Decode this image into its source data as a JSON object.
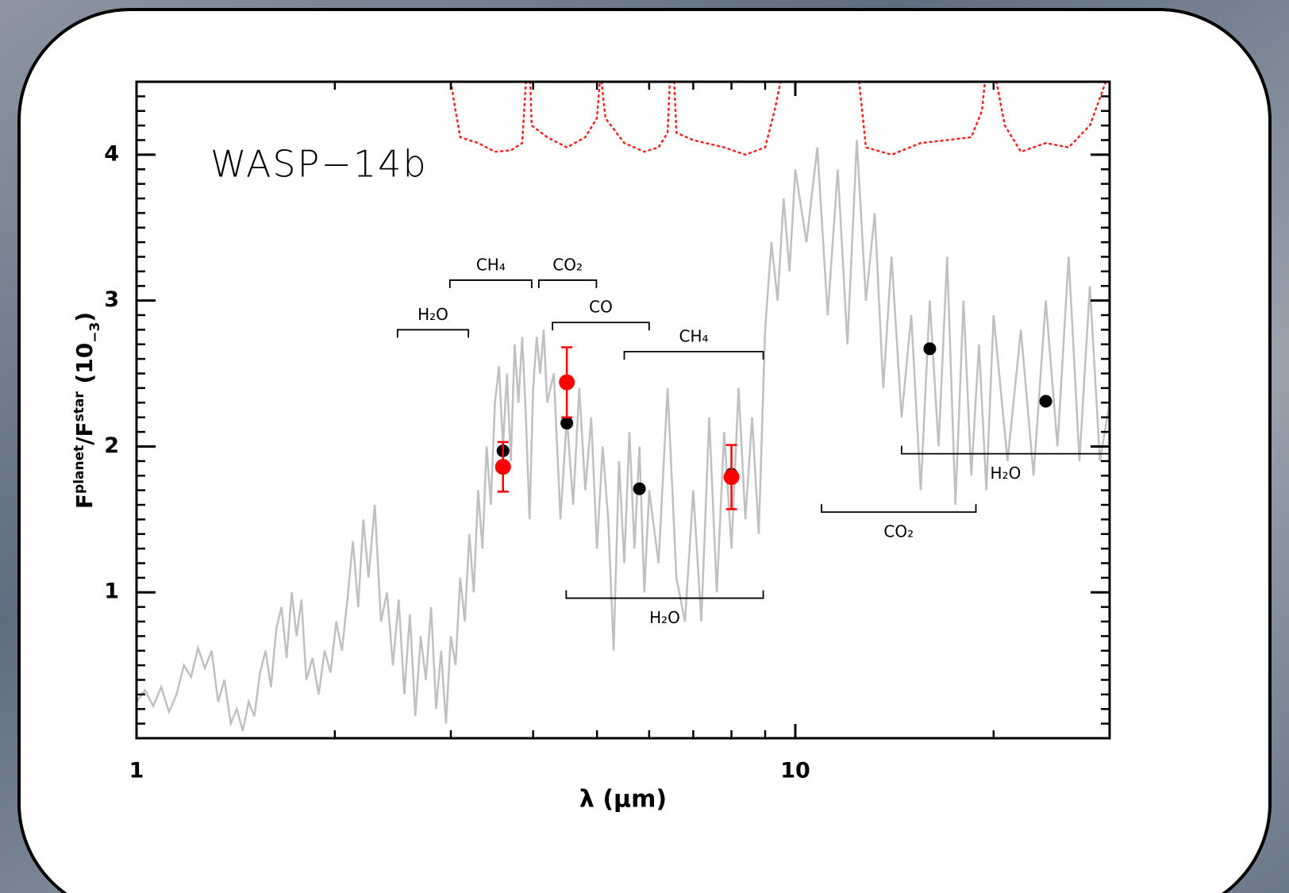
{
  "chart_data": {
    "type": "line",
    "title": "WASP−14b",
    "xlabel": "λ (μm)",
    "ylabel_parts": [
      "F",
      "planet",
      "/F",
      "star",
      " (10",
      "−3",
      ")"
    ],
    "xscale": "log",
    "xlim": [
      1,
      30
    ],
    "ylim": [
      0,
      4.5
    ],
    "xticks": [
      1,
      10
    ],
    "xminorticks": [
      2,
      3,
      4,
      5,
      6,
      7,
      8,
      9,
      20,
      30
    ],
    "yticks": [
      1,
      2,
      3,
      4
    ],
    "yminorticks": [
      0.1,
      0.2,
      0.3,
      0.4,
      0.5,
      0.6,
      0.7,
      0.8,
      0.9,
      1.1,
      1.2,
      1.3,
      1.4,
      1.5,
      1.6,
      1.7,
      1.8,
      1.9,
      2.1,
      2.2,
      2.3,
      2.4,
      2.5,
      2.6,
      2.7,
      2.8,
      2.9,
      3.1,
      3.2,
      3.3,
      3.4,
      3.5,
      3.6,
      3.7,
      3.8,
      3.9,
      4.1,
      4.2,
      4.3,
      4.4
    ],
    "series": [
      {
        "type": "line",
        "color": "#c0c0c0",
        "x": [
          1.0,
          1.03,
          1.06,
          1.09,
          1.12,
          1.15,
          1.18,
          1.21,
          1.24,
          1.27,
          1.3,
          1.33,
          1.36,
          1.39,
          1.42,
          1.45,
          1.48,
          1.51,
          1.54,
          1.57,
          1.6,
          1.63,
          1.66,
          1.69,
          1.72,
          1.75,
          1.78,
          1.81,
          1.85,
          1.89,
          1.93,
          1.97,
          2.01,
          2.05,
          2.09,
          2.13,
          2.17,
          2.21,
          2.25,
          2.3,
          2.35,
          2.4,
          2.45,
          2.5,
          2.55,
          2.6,
          2.65,
          2.7,
          2.75,
          2.8,
          2.85,
          2.9,
          2.95,
          3.0,
          3.05,
          3.1,
          3.15,
          3.2,
          3.25,
          3.3,
          3.35,
          3.4,
          3.45,
          3.5,
          3.55,
          3.6,
          3.65,
          3.7,
          3.75,
          3.8,
          3.85,
          3.9,
          3.95,
          4.0,
          4.05,
          4.1,
          4.15,
          4.2,
          4.3,
          4.4,
          4.5,
          4.6,
          4.7,
          4.8,
          4.9,
          5.0,
          5.1,
          5.2,
          5.3,
          5.4,
          5.5,
          5.6,
          5.7,
          5.8,
          5.9,
          6.0,
          6.2,
          6.4,
          6.6,
          6.8,
          7.0,
          7.2,
          7.4,
          7.6,
          7.8,
          8.0,
          8.2,
          8.4,
          8.6,
          8.8,
          9.0,
          9.2,
          9.4,
          9.6,
          9.8,
          10.0,
          10.4,
          10.8,
          11.2,
          11.6,
          12.0,
          12.4,
          12.8,
          13.2,
          13.6,
          14.0,
          14.5,
          15.0,
          15.5,
          16.0,
          16.5,
          17.0,
          17.5,
          18.0,
          18.5,
          19.0,
          19.5,
          20.0,
          21,
          22,
          23,
          24,
          25,
          26,
          27,
          28,
          29,
          30
        ],
        "values": [
          0.25,
          0.33,
          0.22,
          0.35,
          0.18,
          0.3,
          0.5,
          0.42,
          0.62,
          0.48,
          0.6,
          0.25,
          0.4,
          0.1,
          0.2,
          0.05,
          0.25,
          0.15,
          0.45,
          0.6,
          0.35,
          0.75,
          0.9,
          0.55,
          1.0,
          0.7,
          0.95,
          0.4,
          0.55,
          0.3,
          0.6,
          0.45,
          0.8,
          0.6,
          0.95,
          1.35,
          0.9,
          1.5,
          1.1,
          1.6,
          0.8,
          1.0,
          0.5,
          0.95,
          0.3,
          0.85,
          0.15,
          0.7,
          0.4,
          0.9,
          0.2,
          0.6,
          0.1,
          0.7,
          0.5,
          1.1,
          0.8,
          1.4,
          1.0,
          1.7,
          1.3,
          2.0,
          1.6,
          2.3,
          2.55,
          2.0,
          2.5,
          1.9,
          2.7,
          2.3,
          2.75,
          2.2,
          1.5,
          2.4,
          2.75,
          2.5,
          2.8,
          2.3,
          2.5,
          1.5,
          2.2,
          1.6,
          2.4,
          1.7,
          2.2,
          1.3,
          2.0,
          1.5,
          0.6,
          1.9,
          1.2,
          2.1,
          1.3,
          2.0,
          1.0,
          1.7,
          1.2,
          2.4,
          1.1,
          0.8,
          1.7,
          0.8,
          2.2,
          1.0,
          2.1,
          1.3,
          2.4,
          1.5,
          2.2,
          1.4,
          2.8,
          3.4,
          3.0,
          3.7,
          3.2,
          3.9,
          3.4,
          4.05,
          2.9,
          3.9,
          2.7,
          4.1,
          3.0,
          3.6,
          2.4,
          3.3,
          2.2,
          2.9,
          1.7,
          3.0,
          2.0,
          3.3,
          1.6,
          3.0,
          1.8,
          2.7,
          1.7,
          2.9,
          1.9,
          2.8,
          1.8,
          3.0,
          2.0,
          3.3,
          1.9,
          3.1,
          1.9,
          2.3
        ]
      },
      {
        "type": "line",
        "color": "#ff2020",
        "style": "dotted",
        "x": [
          3.0,
          3.05,
          3.1,
          3.3,
          3.5,
          3.7,
          3.85,
          3.9,
          3.93,
          3.96,
          3.98,
          4.2,
          4.5,
          4.8,
          5.0,
          5.05,
          5.06,
          5.08,
          5.15,
          5.5,
          5.9,
          6.2,
          6.4,
          6.45,
          6.5,
          6.55,
          6.6,
          7.0,
          7.8,
          8.4,
          9.0,
          9.3,
          9.5,
          10,
          12.5,
          12.8,
          14,
          15.5,
          17,
          18.5,
          19.2,
          19.4,
          19.8,
          20.2,
          20.8,
          22,
          24,
          26,
          28,
          29.6
        ],
        "values": [
          4.5,
          4.3,
          4.12,
          4.08,
          4.02,
          4.03,
          4.08,
          4.5,
          null,
          4.5,
          4.2,
          4.12,
          4.05,
          4.12,
          4.25,
          4.5,
          null,
          4.5,
          4.25,
          4.08,
          4.02,
          4.05,
          4.15,
          4.5,
          null,
          4.5,
          4.15,
          4.1,
          4.05,
          4.0,
          4.05,
          4.3,
          4.5,
          null,
          4.5,
          4.05,
          4.0,
          4.08,
          4.1,
          4.12,
          4.3,
          4.5,
          null,
          4.5,
          4.2,
          4.02,
          4.08,
          4.05,
          4.2,
          4.5
        ]
      }
    ],
    "points": [
      {
        "type": "scatter",
        "color": "#000000",
        "x": [
          3.6,
          4.5,
          5.8,
          8.0,
          16,
          24
        ],
        "values": [
          1.97,
          2.16,
          1.71,
          1.81,
          2.67,
          2.31
        ]
      },
      {
        "type": "scatter",
        "color": "#ff0000",
        "x": [
          3.6,
          4.5,
          8.0
        ],
        "values": [
          1.86,
          2.44,
          1.79
        ],
        "errors": [
          0.17,
          0.24,
          0.22
        ]
      }
    ],
    "bands": [
      {
        "label": "H₂O",
        "x": [
          2.49,
          3.19
        ],
        "y": 2.8,
        "side": "above"
      },
      {
        "label": "CH₄",
        "x": [
          2.99,
          3.98
        ],
        "y": 3.14,
        "side": "above"
      },
      {
        "label": "CO₂",
        "x": [
          4.08,
          4.99
        ],
        "y": 3.14,
        "side": "above"
      },
      {
        "label": "CO",
        "x": [
          4.28,
          6.0
        ],
        "y": 2.85,
        "side": "above"
      },
      {
        "label": "CH₄",
        "x": [
          5.5,
          8.94
        ],
        "y": 2.65,
        "side": "above"
      },
      {
        "label": "H₂O",
        "x": [
          4.49,
          8.94
        ],
        "y": 0.96,
        "side": "below"
      },
      {
        "label": "CO₂",
        "x": [
          10.96,
          18.8
        ],
        "y": 1.55,
        "side": "below"
      },
      {
        "label": "H₂O",
        "x": [
          14.5,
          30
        ],
        "y": 1.95,
        "side": "below"
      }
    ]
  }
}
